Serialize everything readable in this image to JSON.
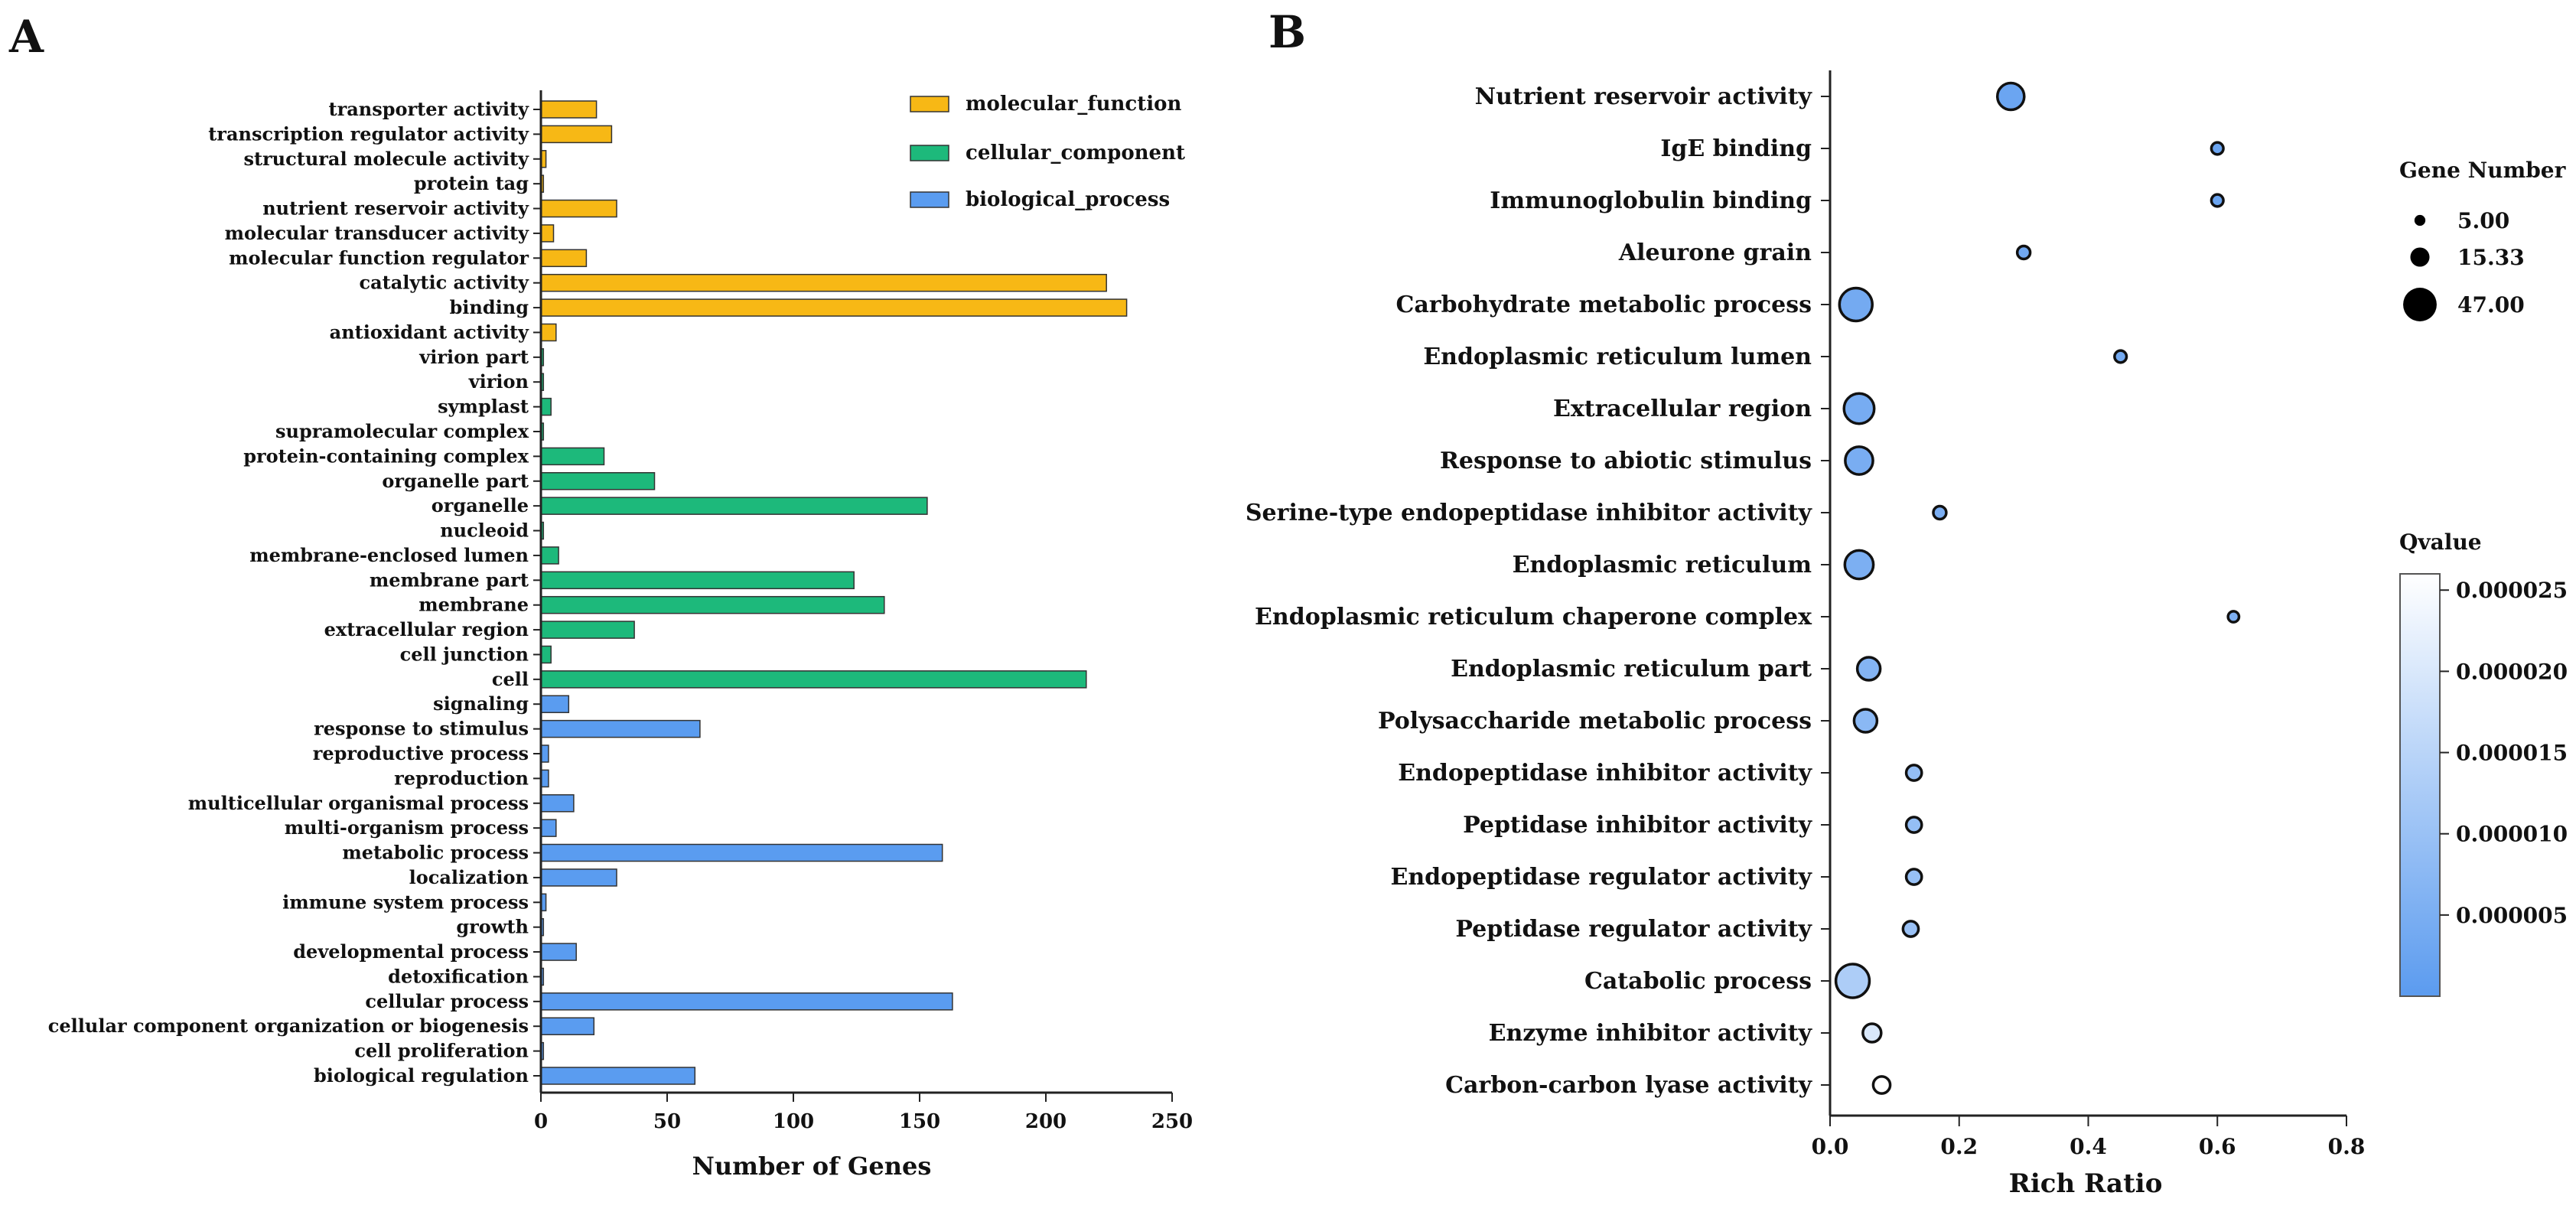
{
  "panel_a_letter": "A",
  "panel_b_letter": "B",
  "colors": {
    "molecular_function": "#F7B815",
    "cellular_component": "#1DB97B",
    "biological_process": "#5A9CF0",
    "bubble_dark": "#5B9BEF",
    "bubble_light": "#FFFFFF"
  },
  "chart_data": [
    {
      "panel": "A",
      "type": "bar",
      "orientation": "horizontal",
      "xlabel": "Number of Genes",
      "xlim": [
        0,
        250
      ],
      "xticks": [
        0,
        50,
        100,
        150,
        200,
        250
      ],
      "legend": [
        "molecular_function",
        "cellular_component",
        "biological_process"
      ],
      "categories": [
        {
          "label": "transporter activity",
          "value": 22,
          "group": "molecular_function"
        },
        {
          "label": "transcription regulator activity",
          "value": 28,
          "group": "molecular_function"
        },
        {
          "label": "structural molecule activity",
          "value": 2,
          "group": "molecular_function"
        },
        {
          "label": "protein tag",
          "value": 1,
          "group": "molecular_function"
        },
        {
          "label": "nutrient reservoir activity",
          "value": 30,
          "group": "molecular_function"
        },
        {
          "label": "molecular transducer activity",
          "value": 5,
          "group": "molecular_function"
        },
        {
          "label": "molecular function regulator",
          "value": 18,
          "group": "molecular_function"
        },
        {
          "label": "catalytic activity",
          "value": 224,
          "group": "molecular_function"
        },
        {
          "label": "binding",
          "value": 232,
          "group": "molecular_function"
        },
        {
          "label": "antioxidant activity",
          "value": 6,
          "group": "molecular_function"
        },
        {
          "label": "virion part",
          "value": 1,
          "group": "cellular_component"
        },
        {
          "label": "virion",
          "value": 1,
          "group": "cellular_component"
        },
        {
          "label": "symplast",
          "value": 4,
          "group": "cellular_component"
        },
        {
          "label": "supramolecular complex",
          "value": 1,
          "group": "cellular_component"
        },
        {
          "label": "protein-containing complex",
          "value": 25,
          "group": "cellular_component"
        },
        {
          "label": "organelle part",
          "value": 45,
          "group": "cellular_component"
        },
        {
          "label": "organelle",
          "value": 153,
          "group": "cellular_component"
        },
        {
          "label": "nucleoid",
          "value": 1,
          "group": "cellular_component"
        },
        {
          "label": "membrane-enclosed lumen",
          "value": 7,
          "group": "cellular_component"
        },
        {
          "label": "membrane part",
          "value": 124,
          "group": "cellular_component"
        },
        {
          "label": "membrane",
          "value": 136,
          "group": "cellular_component"
        },
        {
          "label": "extracellular region",
          "value": 37,
          "group": "cellular_component"
        },
        {
          "label": "cell junction",
          "value": 4,
          "group": "cellular_component"
        },
        {
          "label": "cell",
          "value": 216,
          "group": "cellular_component"
        },
        {
          "label": "signaling",
          "value": 11,
          "group": "biological_process"
        },
        {
          "label": "response to stimulus",
          "value": 63,
          "group": "biological_process"
        },
        {
          "label": "reproductive process",
          "value": 3,
          "group": "biological_process"
        },
        {
          "label": "reproduction",
          "value": 3,
          "group": "biological_process"
        },
        {
          "label": "multicellular organismal process",
          "value": 13,
          "group": "biological_process"
        },
        {
          "label": "multi-organism process",
          "value": 6,
          "group": "biological_process"
        },
        {
          "label": "metabolic process",
          "value": 159,
          "group": "biological_process"
        },
        {
          "label": "localization",
          "value": 30,
          "group": "biological_process"
        },
        {
          "label": "immune system process",
          "value": 2,
          "group": "biological_process"
        },
        {
          "label": "growth",
          "value": 1,
          "group": "biological_process"
        },
        {
          "label": "developmental process",
          "value": 14,
          "group": "biological_process"
        },
        {
          "label": "detoxification",
          "value": 1,
          "group": "biological_process"
        },
        {
          "label": "cellular process",
          "value": 163,
          "group": "biological_process"
        },
        {
          "label": "cellular component organization or biogenesis",
          "value": 21,
          "group": "biological_process"
        },
        {
          "label": "cell proliferation",
          "value": 1,
          "group": "biological_process"
        },
        {
          "label": "biological regulation",
          "value": 61,
          "group": "biological_process"
        }
      ]
    },
    {
      "panel": "B",
      "type": "scatter",
      "subtype": "bubble",
      "xlabel": "Rich Ratio",
      "xlim": [
        0,
        0.8
      ],
      "xticks": [
        "0.0",
        "0.2",
        "0.4",
        "0.6",
        "0.8"
      ],
      "size_legend_title": "Gene Number",
      "size_legend": [
        {
          "label": "5.00",
          "value": 5.0
        },
        {
          "label": "15.33",
          "value": 15.33
        },
        {
          "label": "47.00",
          "value": 47.0
        }
      ],
      "color_legend_title": "Qvalue",
      "color_range": [
        0,
        2.6e-05
      ],
      "color_ticks": [
        "0.000025",
        "0.000020",
        "0.000015",
        "0.000010",
        "0.000005"
      ],
      "color_tick_values": [
        2.5e-05,
        2e-05,
        1.5e-05,
        1e-05,
        5e-06
      ],
      "points": [
        {
          "term": "Nutrient reservoir activity",
          "rich_ratio": 0.28,
          "gene_number": 30,
          "qvalue": 2.5e-06
        },
        {
          "term": "IgE binding",
          "rich_ratio": 0.6,
          "gene_number": 6,
          "qvalue": 2.5e-06
        },
        {
          "term": "Immunoglobulin binding",
          "rich_ratio": 0.6,
          "gene_number": 6,
          "qvalue": 2.5e-06
        },
        {
          "term": "Aleurone grain",
          "rich_ratio": 0.3,
          "gene_number": 7,
          "qvalue": 3.5e-06
        },
        {
          "term": "Carbohydrate metabolic process",
          "rich_ratio": 0.04,
          "gene_number": 45,
          "qvalue": 4e-06
        },
        {
          "term": "Endoplasmic reticulum lumen",
          "rich_ratio": 0.45,
          "gene_number": 6,
          "qvalue": 4e-06
        },
        {
          "term": "Extracellular region",
          "rich_ratio": 0.045,
          "gene_number": 38,
          "qvalue": 4.5e-06
        },
        {
          "term": "Response to abiotic stimulus",
          "rich_ratio": 0.045,
          "gene_number": 32,
          "qvalue": 4.8e-06
        },
        {
          "term": "Serine-type endopeptidase inhibitor activity",
          "rich_ratio": 0.17,
          "gene_number": 7,
          "qvalue": 5e-06
        },
        {
          "term": "Endoplasmic reticulum",
          "rich_ratio": 0.045,
          "gene_number": 34,
          "qvalue": 5.2e-06
        },
        {
          "term": "Endoplasmic reticulum chaperone complex",
          "rich_ratio": 0.625,
          "gene_number": 5,
          "qvalue": 5.5e-06
        },
        {
          "term": "Endoplasmic reticulum part",
          "rich_ratio": 0.06,
          "gene_number": 22,
          "qvalue": 6.5e-06
        },
        {
          "term": "Polysaccharide metabolic process",
          "rich_ratio": 0.055,
          "gene_number": 22,
          "qvalue": 7.5e-06
        },
        {
          "term": "Endopeptidase inhibitor activity",
          "rich_ratio": 0.13,
          "gene_number": 10,
          "qvalue": 9e-06
        },
        {
          "term": "Peptidase inhibitor activity",
          "rich_ratio": 0.13,
          "gene_number": 10,
          "qvalue": 9e-06
        },
        {
          "term": "Endopeptidase regulator activity",
          "rich_ratio": 0.13,
          "gene_number": 10,
          "qvalue": 9.5e-06
        },
        {
          "term": "Peptidase regulator activity",
          "rich_ratio": 0.125,
          "gene_number": 10,
          "qvalue": 1e-05
        },
        {
          "term": "Catabolic process",
          "rich_ratio": 0.035,
          "gene_number": 47,
          "qvalue": 1.3e-05
        },
        {
          "term": "Enzyme inhibitor activity",
          "rich_ratio": 0.065,
          "gene_number": 14,
          "qvalue": 2e-05
        },
        {
          "term": "Carbon-carbon lyase activity",
          "rich_ratio": 0.08,
          "gene_number": 12,
          "qvalue": 2.6e-05
        }
      ]
    }
  ]
}
